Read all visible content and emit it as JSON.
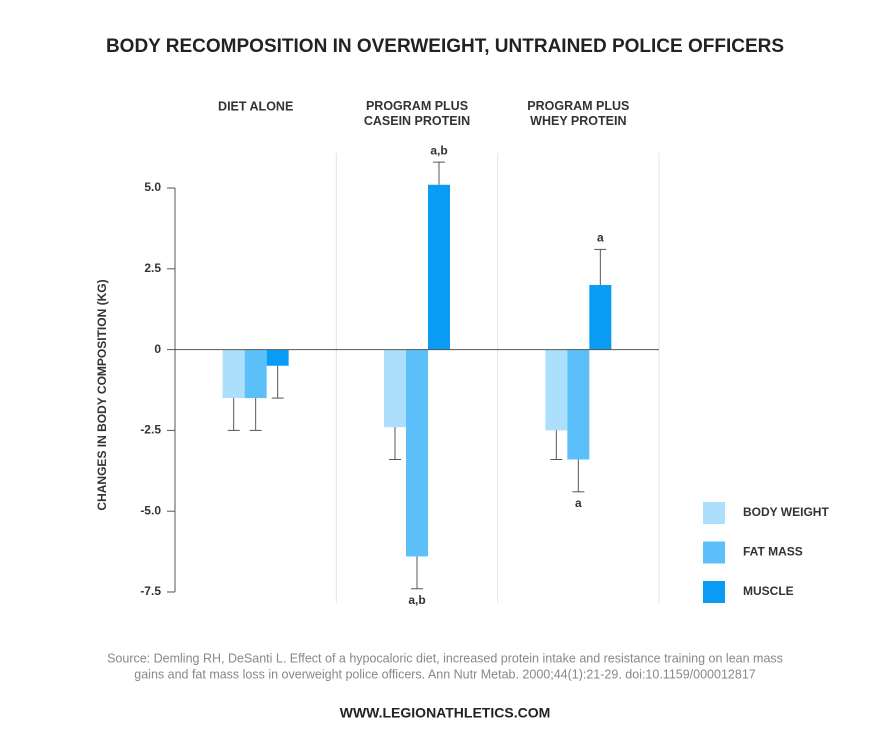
{
  "chart_data": {
    "type": "bar",
    "title": "BODY RECOMPOSITION IN OVERWEIGHT, UNTRAINED POLICE OFFICERS",
    "y_label": "CHANGES IN BODY COMPOSITION (KG)",
    "categories": [
      "DIET ALONE",
      "PROGRAM PLUS\nCASEIN PROTEIN",
      "PROGRAM PLUS\nWHEY PROTEIN"
    ],
    "series": [
      {
        "name": "BODY WEIGHT",
        "color": "#abdffc",
        "values": [
          -1.5,
          -2.4,
          -2.5
        ],
        "errors": [
          1.0,
          1.0,
          0.9
        ],
        "annotations": [
          null,
          null,
          null
        ]
      },
      {
        "name": "FAT MASS",
        "color": "#5bc0fa",
        "values": [
          -1.5,
          -6.4,
          -3.4
        ],
        "errors": [
          1.0,
          1.0,
          1.0
        ],
        "annotations": [
          null,
          "a,b",
          "a"
        ]
      },
      {
        "name": "MUSCLE",
        "color": "#0a9cf5",
        "values": [
          -0.5,
          5.1,
          2.0
        ],
        "errors": [
          1.0,
          0.7,
          1.1
        ],
        "annotations": [
          null,
          "a,b",
          "a"
        ]
      }
    ],
    "ylim": [
      -7.5,
      5.0
    ],
    "yticks": [
      {
        "value": 5,
        "label": "5.0"
      },
      2.5,
      0,
      -2.5,
      {
        "value": -5,
        "label": "-5.0"
      },
      -7.5
    ],
    "legend": "right",
    "source": [
      "Source: Demling RH, DeSanti L. Effect of a hypocaloric diet, increased protein intake and resistance training on lean mass",
      "gains and fat mass loss in overweight police officers. Ann Nutr Metab. 2000;44(1):21-29. doi:10.1159/000012817"
    ],
    "website": "WWW.LEGIONATHLETICS.COM"
  }
}
